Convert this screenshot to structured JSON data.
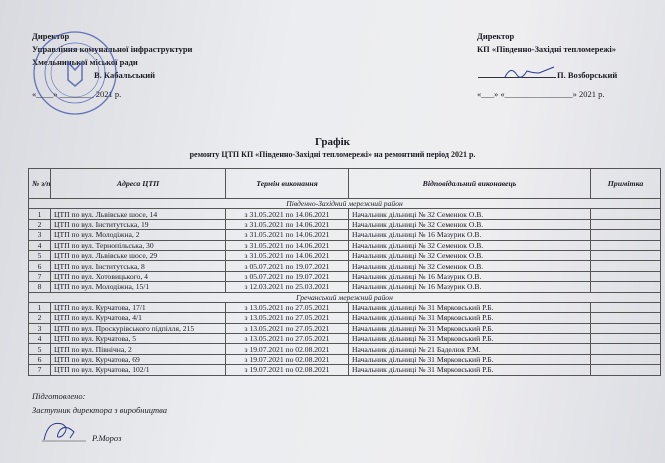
{
  "left_approval": {
    "title": "Директор",
    "org1": "Управління комунальної інфраструктури",
    "org2": "Хмельницької міської ради",
    "signer": "В. Кабальський",
    "date": "«____» ________ 2021 р."
  },
  "right_approval": {
    "title": "Директор",
    "org": "КП «Південно-Західні тепломережі»",
    "signer": "П. Возборський",
    "date": "«___» «________________»  2021 р."
  },
  "stamp": {
    "text": "Управління комунальної інфраструктури Хмельницької міської ради • Україна",
    "color": "#3b4fa8"
  },
  "doc_title": "Графік",
  "doc_subtitle": "ремонту ЦТП КП «Південно-Західні тепломережі» на ремонтний період 2021 р.",
  "table": {
    "headers": [
      "№ з/п",
      "Адреса ЦТП",
      "Термін виконання",
      "Відповідальний виконавець",
      "Примітка"
    ],
    "sections": [
      {
        "name": "Південно-Західний мережний район",
        "rows": [
          [
            "1",
            "ЦТП по вул. Львівське шосе, 14",
            "з 31.05.2021 по 14.06.2021",
            "Начальник дільниці № 32 Семенюк О.В.",
            ""
          ],
          [
            "2",
            "ЦТП по вул. Інститутська, 19",
            "з 31.05.2021 по 14.06.2021",
            "Начальник дільниці № 32 Семенюк О.В.",
            ""
          ],
          [
            "3",
            "ЦТП по вул. Молодіжна, 2",
            "з 31.05.2021 по 14.06.2021",
            "Начальник дільниці № 16 Мазурик О.В.",
            ""
          ],
          [
            "4",
            "ЦТП по вул. Тернопільська, 30",
            "з 31.05.2021 по 14.06.2021",
            "Начальник дільниці № 32 Семенюк О.В.",
            ""
          ],
          [
            "5",
            "ЦТП по вул. Львівське шосе, 29",
            "з 31.05.2021 по 14.06.2021",
            "Начальник дільниці № 32 Семенюк О.В.",
            ""
          ],
          [
            "6",
            "ЦТП по вул. Інститутська, 8",
            "з 05.07.2021 по 19.07.2021",
            "Начальник дільниці № 32 Семенюк О.В.",
            ""
          ],
          [
            "7",
            "ЦТП по вул. Хотовицького, 4",
            "з 05.07.2021 по 19.07.2021",
            "Начальник дільниці № 16 Мазурик О.В.",
            ""
          ],
          [
            "8",
            "ЦТП по вул. Молодіжна, 15/1",
            "з 12.03.2021 по  25.03.2021",
            "Начальник дільниці № 16 Мазурик О.В.",
            ""
          ]
        ]
      },
      {
        "name": "Гречанський мережний район",
        "rows": [
          [
            "1",
            "ЦТП по вул. Курчатова, 17/1",
            "з 13.05.2021 по 27.05.2021",
            "Начальник дільниці № 31 Мярковський Р.Б.",
            ""
          ],
          [
            "2",
            "ЦТП по вул. Курчатова, 4/1",
            "з 13.05.2021 по 27.05.2021",
            "Начальник дільниці № 31 Мярковський Р.Б.",
            ""
          ],
          [
            "3",
            "ЦТП по вул. Проскурівського підпілля, 215",
            "з 13.05.2021 по 27.05.2021",
            "Начальник дільниці № 31 Мярковський Р.Б.",
            ""
          ],
          [
            "4",
            "ЦТП по вул. Курчатова, 5",
            "з 13.05.2021 по 27.05.2021",
            "Начальник дільниці № 31 Мярковський Р.Б.",
            ""
          ],
          [
            "5",
            "ЦТП по вул. Північна, 2",
            "з 19.07.2021 по 02.08.2021",
            "Начальник дільниці № 21 Баделюк Р.М.",
            ""
          ],
          [
            "6",
            "ЦТП по вул. Курчатова, 69",
            "з 19.07.2021 по 02.08.2021",
            "Начальник дільниці № 31 Мярковський Р.Б.",
            ""
          ],
          [
            "7",
            "ЦТП по вул. Курчатова, 102/1",
            "з 19.07.2021 по 02.08.2021",
            "Начальник дільниці № 31 Мярковський Р.Б.",
            ""
          ]
        ]
      }
    ]
  },
  "footer": {
    "prepared": "Підготовлено:",
    "position": "Заступник директора з виробництва",
    "signer": "Р.Мороз"
  }
}
